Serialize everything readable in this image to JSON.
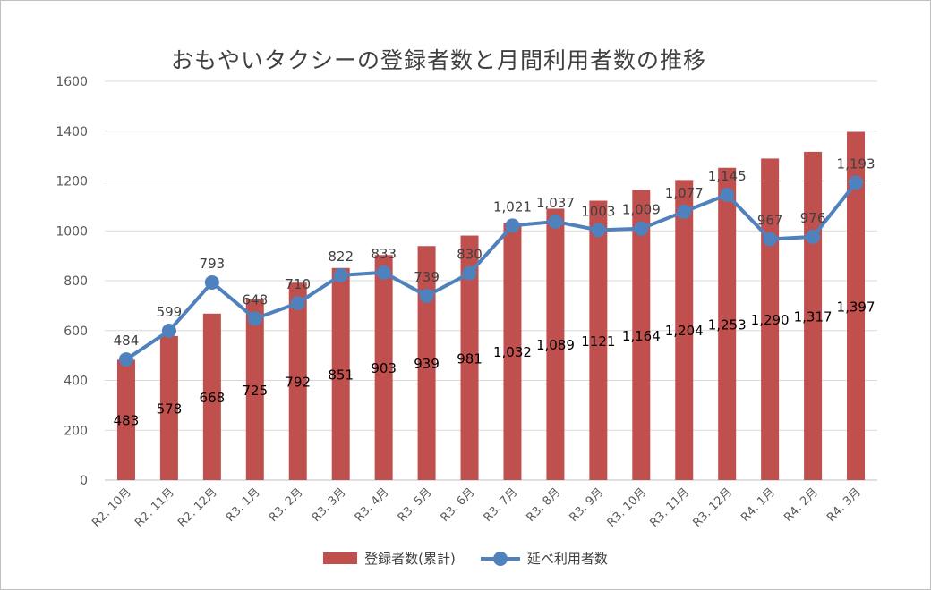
{
  "chart_data": {
    "type": "bar+line",
    "title": "おもやいタクシーの登録者数と月間利用者数の推移",
    "categories": [
      "R2. 10月",
      "R2. 11月",
      "R2. 12月",
      "R3. 1月",
      "R3. 2月",
      "R3. 3月",
      "R3. 4月",
      "R3. 5月",
      "R3. 6月",
      "R3. 7月",
      "R3. 8月",
      "R3. 9月",
      "R3. 10月",
      "R3. 11月",
      "R3. 12月",
      "R4. 1月",
      "R4. 2月",
      "R4. 3月"
    ],
    "ylim": [
      0,
      1600
    ],
    "yticks": [
      0,
      200,
      400,
      600,
      800,
      1000,
      1200,
      1400,
      1600
    ],
    "grid": true,
    "legend_position": "bottom",
    "series": [
      {
        "name": "登録者数(累計)",
        "type": "bar",
        "color": "#c0504d",
        "values": [
          483,
          578,
          668,
          725,
          792,
          851,
          903,
          939,
          981,
          1032,
          1089,
          1121,
          1164,
          1204,
          1253,
          1290,
          1317,
          1397
        ],
        "labels": [
          "483",
          "578",
          "668",
          "725",
          "792",
          "851",
          "903",
          "939",
          "981",
          "1,032",
          "1,089",
          "1121",
          "1,164",
          "1,204",
          "1,253",
          "1,290",
          "1,317",
          "1,397"
        ]
      },
      {
        "name": "延べ利用者数",
        "type": "line",
        "color": "#4f81bd",
        "values": [
          484,
          599,
          793,
          648,
          710,
          822,
          833,
          739,
          830,
          1021,
          1037,
          1003,
          1009,
          1077,
          1145,
          967,
          976,
          1193
        ],
        "labels": [
          "484",
          "599",
          "793",
          "648",
          "710",
          "822",
          "833",
          "739",
          "830",
          "1,021",
          "1,037",
          "1003",
          "1,009",
          "1,077",
          "1,145",
          "967",
          "976",
          "1,193"
        ]
      }
    ]
  }
}
